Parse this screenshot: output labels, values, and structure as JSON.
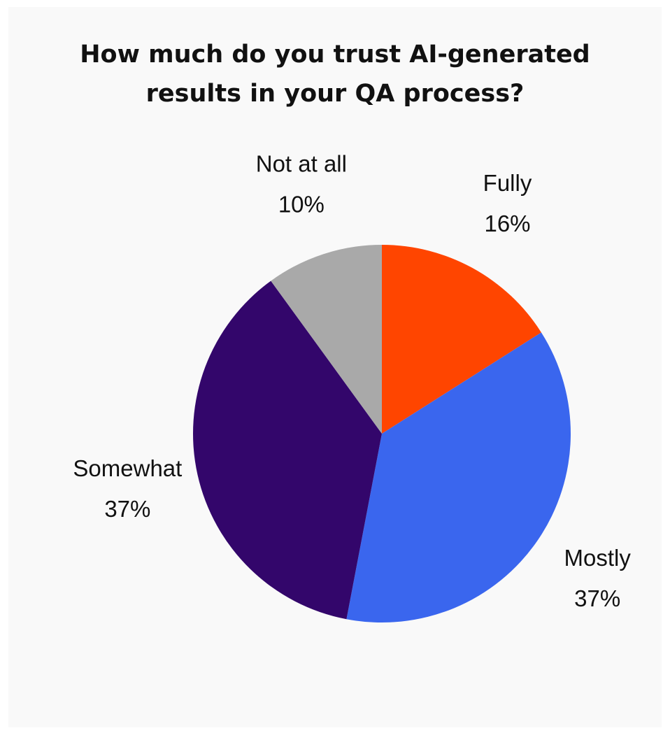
{
  "chart_data": {
    "type": "pie",
    "title": "How much do you trust AI-generated\nresults in your QA process?",
    "categories": [
      "Fully",
      "Mostly",
      "Somewhat",
      "Not at all"
    ],
    "values": [
      16,
      37,
      37,
      10
    ],
    "value_labels": [
      "16%",
      "37%",
      "37%",
      "10%"
    ],
    "colors": [
      "#ff4500",
      "#3a66ee",
      "#33066b",
      "#a9a9a9"
    ]
  }
}
